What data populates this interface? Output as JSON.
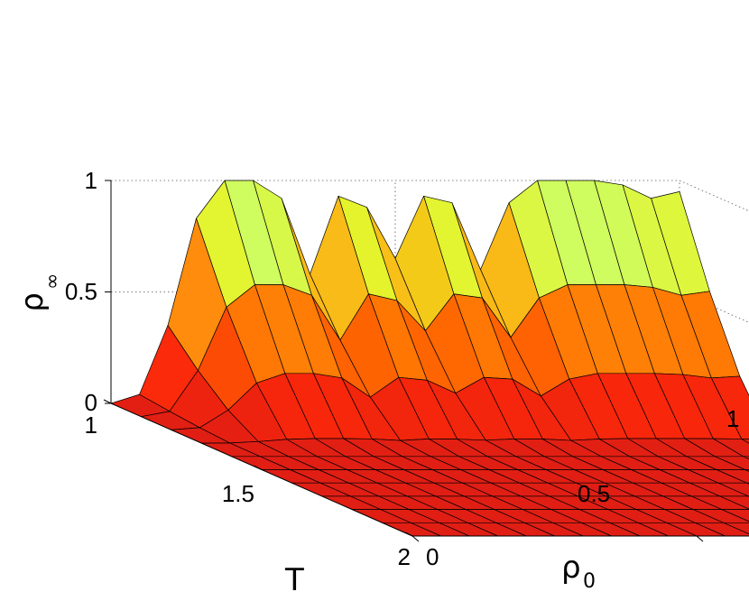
{
  "chart_data": {
    "type": "surface",
    "axes": {
      "x": {
        "label": "ρ",
        "label_subscript": "0",
        "range": [
          0,
          1
        ],
        "ticks": [
          "0",
          "0.5",
          "1"
        ]
      },
      "y": {
        "label": "T",
        "range": [
          1,
          2
        ],
        "ticks": [
          "1",
          "1.5",
          "2"
        ]
      },
      "z": {
        "label": "ρ",
        "label_subscript": "∞",
        "range": [
          0,
          1
        ],
        "ticks": [
          "0",
          "0.5",
          "1"
        ]
      }
    },
    "grid": true,
    "colormap": "jet (red–orange–yellow–green)",
    "rho0": [
      0,
      0.05,
      0.1,
      0.15,
      0.2,
      0.25,
      0.3,
      0.35,
      0.4,
      0.45,
      0.5,
      0.55,
      0.6,
      0.65,
      0.7,
      0.75,
      0.8,
      0.85,
      0.9,
      0.95,
      1.0
    ],
    "T": [
      1.0,
      1.1,
      1.2,
      1.3,
      1.4,
      1.5,
      1.6,
      1.7,
      1.8,
      1.9,
      2.0
    ],
    "rho_inf_at_T1": [
      0,
      0.04,
      0.35,
      0.83,
      1.0,
      1.0,
      0.92,
      0.58,
      0.93,
      0.88,
      0.65,
      0.93,
      0.9,
      0.6,
      0.9,
      1.0,
      1.0,
      1.0,
      0.98,
      0.92,
      0.95
    ]
  }
}
